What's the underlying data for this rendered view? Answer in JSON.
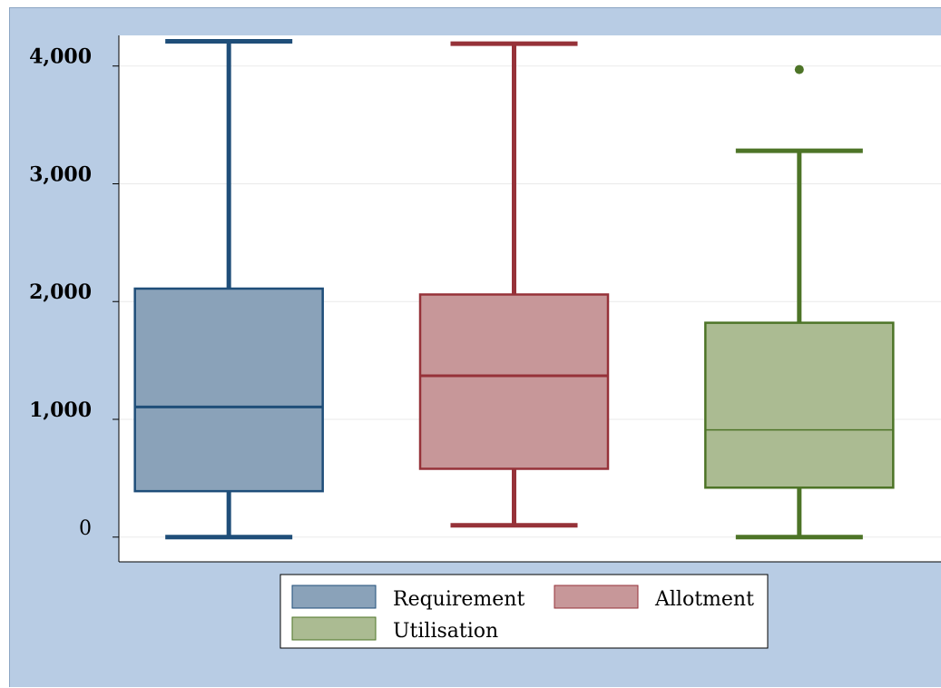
{
  "chart_data": {
    "type": "box",
    "title": "",
    "xlabel": "",
    "ylabel": "",
    "ylim": [
      -210,
      4260
    ],
    "yticks": [
      {
        "value": 0,
        "label": "0",
        "bold": false
      },
      {
        "value": 1000,
        "label": "1,000",
        "bold": true
      },
      {
        "value": 2000,
        "label": "2,000",
        "bold": true
      },
      {
        "value": 3000,
        "label": "3,000",
        "bold": true
      },
      {
        "value": 4000,
        "label": "4,000",
        "bold": true
      }
    ],
    "grid": true,
    "legend_position": "bottom",
    "series": [
      {
        "name": "Requirement",
        "fill": "#8aa2b9",
        "stroke": "#1f4e79",
        "whisker_low": 0,
        "q1": 390,
        "median": 1105,
        "q3": 2110,
        "whisker_high": 4210,
        "outliers": []
      },
      {
        "name": "Allotment",
        "fill": "#c79799",
        "stroke": "#963239",
        "whisker_low": 100,
        "q1": 580,
        "median": 1370,
        "q3": 2060,
        "whisker_high": 4190,
        "outliers": []
      },
      {
        "name": "Utilisation",
        "fill": "#abbb92",
        "stroke": "#4d7427",
        "whisker_low": 0,
        "q1": 420,
        "median": 910,
        "q3": 1820,
        "whisker_high": 3280,
        "outliers": [
          3970
        ]
      }
    ]
  }
}
